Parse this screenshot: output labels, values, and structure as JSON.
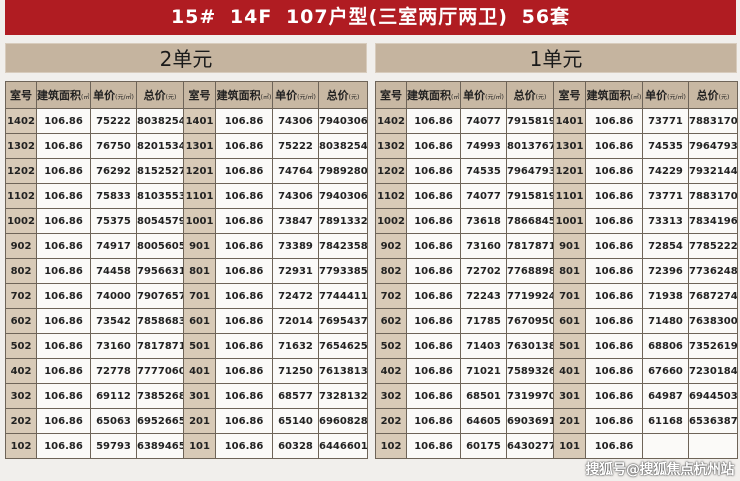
{
  "title": "15# 14F   107户型(三室两厅两卫)    56套",
  "colors": {
    "banner": "#b01c22",
    "unit_header": "#c5b49f",
    "room_column": "#d8cab7"
  },
  "columns": {
    "room": "室号",
    "area": "建筑面积",
    "area_unit": "(㎡)",
    "price": "单价",
    "price_unit": "(元/㎡)",
    "total": "总价",
    "total_unit": "(元)"
  },
  "watermark": "搜狐号@搜狐焦点杭州站",
  "tables": [
    {
      "unit": "2单元",
      "rows": [
        [
          "1402",
          "106.86",
          "75222",
          "8038254",
          "1401",
          "106.86",
          "74306",
          "7940306"
        ],
        [
          "1302",
          "106.86",
          "76750",
          "8201534",
          "1301",
          "106.86",
          "75222",
          "8038254"
        ],
        [
          "1202",
          "106.86",
          "76292",
          "8152527",
          "1201",
          "106.86",
          "74764",
          "7989280"
        ],
        [
          "1102",
          "106.86",
          "75833",
          "8103553",
          "1101",
          "106.86",
          "74306",
          "7940306"
        ],
        [
          "1002",
          "106.86",
          "75375",
          "8054579",
          "1001",
          "106.86",
          "73847",
          "7891332"
        ],
        [
          "902",
          "106.86",
          "74917",
          "8005605",
          "901",
          "106.86",
          "73389",
          "7842358"
        ],
        [
          "802",
          "106.86",
          "74458",
          "7956631",
          "801",
          "106.86",
          "72931",
          "7793385"
        ],
        [
          "702",
          "106.86",
          "74000",
          "7907657",
          "701",
          "106.86",
          "72472",
          "7744411"
        ],
        [
          "602",
          "106.86",
          "73542",
          "7858683",
          "601",
          "106.86",
          "72014",
          "7695437"
        ],
        [
          "502",
          "106.86",
          "73160",
          "7817871",
          "501",
          "106.86",
          "71632",
          "7654625"
        ],
        [
          "402",
          "106.86",
          "72778",
          "7777060",
          "401",
          "106.86",
          "71250",
          "7613813"
        ],
        [
          "302",
          "106.86",
          "69112",
          "7385268",
          "301",
          "106.86",
          "68577",
          "7328132"
        ],
        [
          "202",
          "106.86",
          "65063",
          "6952665",
          "201",
          "106.86",
          "65140",
          "6960828"
        ],
        [
          "102",
          "106.86",
          "59793",
          "6389465",
          "101",
          "106.86",
          "60328",
          "6446601"
        ]
      ]
    },
    {
      "unit": "1单元",
      "rows": [
        [
          "1402",
          "106.86",
          "74077",
          "7915819",
          "1401",
          "106.86",
          "73771",
          "7883170"
        ],
        [
          "1302",
          "106.86",
          "74993",
          "8013767",
          "1301",
          "106.86",
          "74535",
          "7964793"
        ],
        [
          "1202",
          "106.86",
          "74535",
          "7964793",
          "1201",
          "106.86",
          "74229",
          "7932144"
        ],
        [
          "1102",
          "106.86",
          "74077",
          "7915819",
          "1101",
          "106.86",
          "73771",
          "7883170"
        ],
        [
          "1002",
          "106.86",
          "73618",
          "7866845",
          "1001",
          "106.86",
          "73313",
          "7834196"
        ],
        [
          "902",
          "106.86",
          "73160",
          "7817871",
          "901",
          "106.86",
          "72854",
          "7785222"
        ],
        [
          "802",
          "106.86",
          "72702",
          "7768898",
          "801",
          "106.86",
          "72396",
          "7736248"
        ],
        [
          "702",
          "106.86",
          "72243",
          "7719924",
          "701",
          "106.86",
          "71938",
          "7687274"
        ],
        [
          "602",
          "106.86",
          "71785",
          "7670950",
          "601",
          "106.86",
          "71480",
          "7638300"
        ],
        [
          "502",
          "106.86",
          "71403",
          "7630138",
          "501",
          "106.86",
          "68806",
          "7352619"
        ],
        [
          "402",
          "106.86",
          "71021",
          "7589326",
          "401",
          "106.86",
          "67660",
          "7230184"
        ],
        [
          "302",
          "106.86",
          "68501",
          "7319970",
          "301",
          "106.86",
          "64987",
          "6944503"
        ],
        [
          "202",
          "106.86",
          "64605",
          "6903691",
          "201",
          "106.86",
          "61168",
          "6536387"
        ],
        [
          "102",
          "106.86",
          "60175",
          "6430277",
          "101",
          "106.86",
          "",
          ""
        ]
      ]
    }
  ]
}
